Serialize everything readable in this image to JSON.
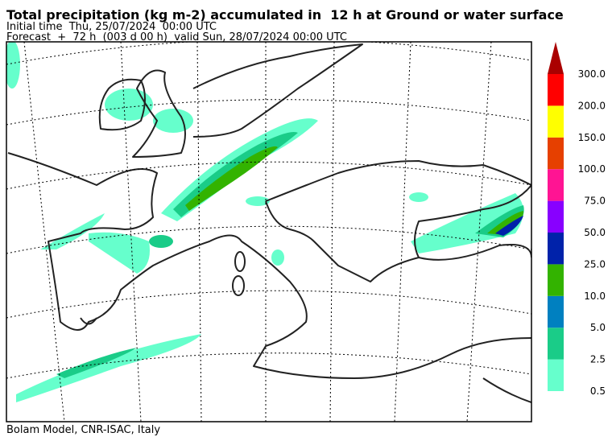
{
  "header": {
    "title": "Total precipitation (kg m-2) accumulated in  12 h at Ground or water surface",
    "initial_time": "Initial time  Thu, 25/07/2024  00:00 UTC",
    "forecast": "Forecast  +  72 h  (003 d 00 h)  valid Sun, 28/07/2024 00:00 UTC"
  },
  "legend": {
    "labels": [
      "0.5",
      "2.5",
      "5.0",
      "10.0",
      "25.0",
      "50.0",
      "75.0",
      "100.0",
      "150.0",
      "200.0",
      "300.0"
    ],
    "colors": [
      "#66ffcc",
      "#1acc88",
      "#0080c0",
      "#33b300",
      "#0022aa",
      "#8800ff",
      "#ff1493",
      "#e64000",
      "#ffff00",
      "#ff0000",
      "#aa0000"
    ]
  },
  "footer": "Bolam Model, CNR-ISAC, Italy"
}
